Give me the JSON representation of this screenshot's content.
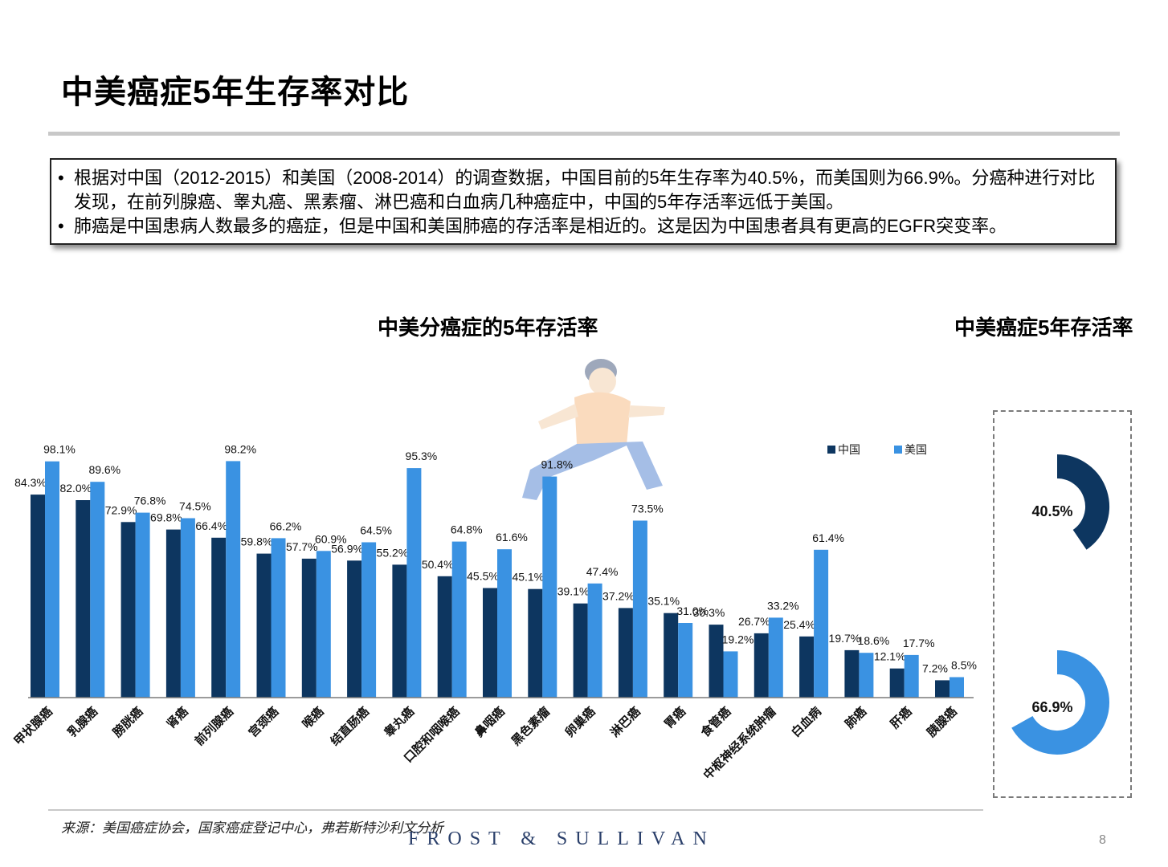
{
  "page": {
    "title": "中美癌症5年生存率对比",
    "summary": [
      "根据对中国（2012-2015）和美国（2008-2014）的调查数据，中国目前的5年生存率为40.5%，而美国则为66.9%。分癌种进行对比发现，在前列腺癌、睾丸癌、黑素瘤、淋巴癌和白血病几种癌症中，中国的5年存活率远低于美国。",
      "肺癌是中国患病人数最多的癌症，但是中国和美国肺癌的存活率是相近的。这是因为中国患者具有更高的EGFR突变率。"
    ],
    "source": "来源：美国癌症协会，国家癌症登记中心，弗若斯特沙利文分析",
    "brand": "FROST & SULLIVAN",
    "page_number": "8"
  },
  "colors": {
    "china": "#0d3660",
    "usa": "#3a92e2"
  },
  "chart_data": [
    {
      "type": "bar",
      "title": "中美分癌症的5年存活率",
      "categories": [
        "甲状腺癌",
        "乳腺癌",
        "膀胱癌",
        "肾癌",
        "前列腺癌",
        "宫颈癌",
        "喉癌",
        "结直肠癌",
        "睾丸癌",
        "口腔和咽喉癌",
        "鼻咽癌",
        "黑色素瘤",
        "卵巢癌",
        "淋巴癌",
        "胃癌",
        "食管癌",
        "中枢神经系统肿瘤",
        "白血病",
        "肺癌",
        "肝癌",
        "胰腺癌"
      ],
      "series": [
        {
          "name": "中国",
          "values": [
            84.3,
            82.0,
            72.9,
            69.8,
            66.4,
            59.8,
            57.7,
            56.9,
            55.2,
            50.4,
            45.5,
            45.1,
            39.1,
            37.2,
            35.1,
            30.3,
            26.7,
            25.4,
            19.7,
            12.1,
            7.2
          ]
        },
        {
          "name": "美国",
          "values": [
            98.1,
            89.6,
            76.8,
            74.5,
            98.2,
            66.2,
            60.9,
            64.5,
            95.3,
            64.8,
            61.6,
            91.8,
            47.4,
            73.5,
            31.0,
            19.2,
            33.2,
            61.4,
            18.6,
            17.7,
            8.5
          ]
        }
      ],
      "value_labels": {
        "中国": [
          "84.3%",
          "82.0%",
          "72.9%",
          "69.8%",
          "66.4%",
          "59.8%",
          "57.7%",
          "56.9%",
          "55.2%",
          "50.4%",
          "45.5%",
          "45.1%",
          "39.1%",
          "37.2%",
          "35.1%",
          "30.3%",
          "26.7%",
          "25.4%",
          "19.7%",
          "12.1%",
          "7.2%"
        ],
        "美国": [
          "98.1%",
          "89.6%",
          "76.8%",
          "74.5%",
          "98.2%",
          "66.2%",
          "60.9%",
          "64.5%",
          "95.3%",
          "64.8%",
          "61.6%",
          "91.8%",
          "47.4%",
          "73.5%",
          "31.0%",
          "19.2%",
          "33.2%",
          "61.4%",
          "18.6%",
          "17.7%",
          "8.5%"
        ]
      },
      "ylim": [
        0,
        100
      ],
      "xlabel": "",
      "ylabel": "",
      "legend": [
        "中国",
        "美国"
      ],
      "legend_position": "top-right"
    },
    {
      "type": "pie",
      "title": "中美癌症5年存活率",
      "series": [
        {
          "name": "中国",
          "value": 40.5,
          "label": "40.5%"
        },
        {
          "name": "美国",
          "value": 66.9,
          "label": "66.9%"
        }
      ]
    }
  ]
}
